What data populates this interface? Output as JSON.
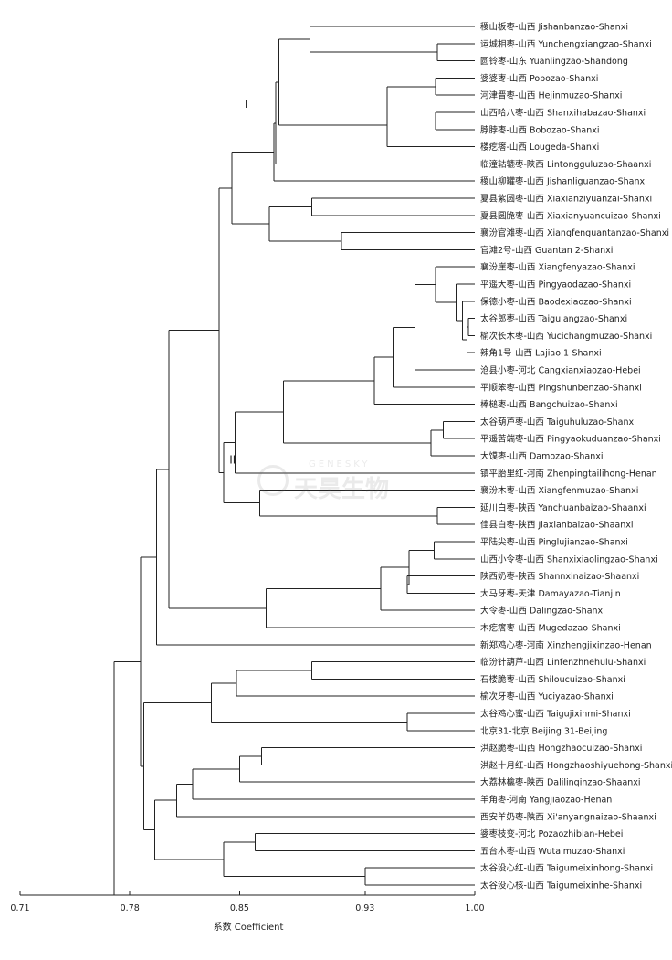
{
  "chart_data": {
    "type": "dendrogram",
    "xlabel": "系数 Coefficient",
    "xlim": [
      0.71,
      1.0
    ],
    "xticks": [
      "0.71",
      "0.78",
      "0.85",
      "0.93",
      "1.00"
    ],
    "cluster_labels": [
      "I",
      "II"
    ],
    "leaves": [
      "稷山板枣-山西 Jishanbanzao-Shanxi",
      "运城相枣-山西 Yunchengxiangzao-Shanxi",
      "圆铃枣-山东 Yuanlingzao-Shandong",
      "婆婆枣-山西 Popozao-Shanxi",
      "河津晋枣-山西 Hejinmuzao-Shanxi",
      "山西哈八枣-山西 Shanxihabazao-Shanxi",
      "脖脖枣-山西 Bobozao-Shanxi",
      "楼疙瘩-山西 Lougeda-Shanxi",
      "临潼轱辘枣-陕西 Lintongguluzao-Shaanxi",
      "稷山柳罐枣-山西 Jishanliguanzao-Shanxi",
      "夏县紫圆枣-山西 Xiaxianziyuanzai-Shanxi",
      "夏县圆脆枣-山西 Xiaxianyuancuizao-Shanxi",
      "襄汾官滩枣-山西 Xiangfenguantanzao-Shanxi",
      "官滩2号-山西 Guantan 2-Shanxi",
      "襄汾崖枣-山西 Xiangfenyazao-Shanxi",
      "平遥大枣-山西 Pingyaodazao-Shanxi",
      "保德小枣-山西 Baodexiaozao-Shanxi",
      "太谷郎枣-山西 Taigulangzao-Shanxi",
      "榆次长木枣-山西 Yucichangmuzao-Shanxi",
      "辣角1号-山西 Lajiao 1-Shanxi",
      "沧县小枣-河北 Cangxianxiaozao-Hebei",
      "平顺笨枣-山西 Pingshunbenzao-Shanxi",
      "棒槌枣-山西 Bangchuizao-Shanxi",
      "太谷葫芦枣-山西 Taiguhuluzao-Shanxi",
      "平遥苦端枣-山西 Pingyaokuduanzao-Shanxi",
      "大馍枣-山西 Damozao-Shanxi",
      "镇平胎里红-河南 Zhenpingtailihong-Henan",
      "襄汾木枣-山西 Xiangfenmuzao-Shanxi",
      "延川白枣-陕西 Yanchuanbaizao-Shaanxi",
      "佳县白枣-陕西 Jiaxianbaizao-Shaanxi",
      "平陆尖枣-山西 Pinglujianzao-Shanxi",
      "山西小令枣-山西 Shanxixiaolingzao-Shanxi",
      "陕西奶枣-陕西 Shannxinaizao-Shaanxi",
      "大马牙枣-天津 Damayazao-Tianjin",
      "大令枣-山西 Dalingzao-Shanxi",
      "木疙瘩枣-山西 Mugedazao-Shanxi",
      "新郑鸡心枣-河南 Xinzhengjixinzao-Henan",
      "临汾针葫芦-山西 Linfenzhnehulu-Shanxi",
      "石楼脆枣-山西 Shiloucuizao-Shanxi",
      "榆次牙枣-山西 Yuciyazao-Shanxi",
      "太谷鸡心蜜-山西 Taigujixinmi-Shanxi",
      "北京31-北京 Beijing 31-Beijing",
      "洪赵脆枣-山西 Hongzhaocuizao-Shanxi",
      "洪赵十月红-山西 Hongzhaoshiyuehong-Shanxi",
      "大荔林檎枣-陕西 Dalilinqinzao-Shaanxi",
      "羊角枣-河南 Yangjiaozao-Henan",
      "西安羊奶枣-陕西 Xi'anyangnaizao-Shaanxi",
      "婆枣枝变-河北 Pozaozhibian-Hebei",
      "五台木枣-山西 Wutaimuzao-Shanxi",
      "太谷没心红-山西 Taigumeixinhong-Shanxi",
      "太谷没心核-山西 Taigumeixinhe-Shanxi"
    ],
    "merges": [
      {
        "a": 1,
        "b": 2,
        "sim": 0.976
      },
      {
        "a": 3,
        "b": 4,
        "sim": 0.975
      },
      {
        "a": 5,
        "b": 6,
        "sim": 0.975
      },
      {
        "a": "n1",
        "b": "n2",
        "sim": 0.944
      },
      {
        "a": "n3",
        "b": 7,
        "sim": 0.944
      },
      {
        "a": 0,
        "b": "n0",
        "sim": 0.895
      },
      {
        "a": "n5",
        "b": "n4",
        "sim": 0.875
      },
      {
        "a": "n6",
        "b": 8,
        "sim": 0.873
      },
      {
        "a": "n7",
        "b": 9,
        "sim": 0.872
      },
      {
        "a": 10,
        "b": 11,
        "sim": 0.896
      },
      {
        "a": 12,
        "b": 13,
        "sim": 0.915
      },
      {
        "a": "n9",
        "b": "n10",
        "sim": 0.869
      },
      {
        "a": "n8",
        "b": "n11",
        "sim": 0.845
      },
      {
        "a": 17,
        "b": 18,
        "sim": 0.996
      },
      {
        "a": "n13",
        "b": 19,
        "sim": 0.995
      },
      {
        "a": 16,
        "b": "n14",
        "sim": 0.992
      },
      {
        "a": 15,
        "b": "n15",
        "sim": 0.988
      },
      {
        "a": 14,
        "b": "n16",
        "sim": 0.975
      },
      {
        "a": "n17",
        "b": 20,
        "sim": 0.962
      },
      {
        "a": "n18",
        "b": 21,
        "sim": 0.948
      },
      {
        "a": "n19",
        "b": 22,
        "sim": 0.936
      },
      {
        "a": 23,
        "b": 24,
        "sim": 0.98
      },
      {
        "a": "n21",
        "b": 25,
        "sim": 0.972
      },
      {
        "a": "n20",
        "b": "n22",
        "sim": 0.878
      },
      {
        "a": "n23",
        "b": 26,
        "sim": 0.847
      },
      {
        "a": 28,
        "b": 29,
        "sim": 0.976
      },
      {
        "a": 27,
        "b": "n25",
        "sim": 0.863
      },
      {
        "a": "n24",
        "b": "n26",
        "sim": 0.84
      },
      {
        "a": "n12",
        "b": "n27",
        "sim": 0.837
      },
      {
        "a": 30,
        "b": 31,
        "sim": 0.974
      },
      {
        "a": 32,
        "b": 33,
        "sim": 0.957
      },
      {
        "a": "n29",
        "b": "n30",
        "sim": 0.958
      },
      {
        "a": "n31",
        "b": 34,
        "sim": 0.94
      },
      {
        "a": "n32",
        "b": 35,
        "sim": 0.867
      },
      {
        "a": "n28",
        "b": "n33",
        "sim": 0.805
      },
      {
        "a": "n34",
        "b": 36,
        "sim": 0.797
      },
      {
        "a": 37,
        "b": 38,
        "sim": 0.896
      },
      {
        "a": "n36",
        "b": 39,
        "sim": 0.848
      },
      {
        "a": 40,
        "b": 41,
        "sim": 0.957
      },
      {
        "a": "n37",
        "b": "n38",
        "sim": 0.832
      },
      {
        "a": 42,
        "b": 43,
        "sim": 0.864
      },
      {
        "a": "n40",
        "b": 44,
        "sim": 0.85
      },
      {
        "a": "n41",
        "b": 45,
        "sim": 0.82
      },
      {
        "a": "n42",
        "b": 46,
        "sim": 0.81
      },
      {
        "a": 47,
        "b": 48,
        "sim": 0.86
      },
      {
        "a": 49,
        "b": 50,
        "sim": 0.93
      },
      {
        "a": "n44",
        "b": "n45",
        "sim": 0.84
      },
      {
        "a": "n43",
        "b": "n46",
        "sim": 0.796
      },
      {
        "a": "n39",
        "b": "n47",
        "sim": 0.789
      },
      {
        "a": "n35",
        "b": "n48",
        "sim": 0.787
      },
      {
        "a": "n49",
        "b": null,
        "sim": 0.77
      }
    ]
  },
  "watermark": {
    "en": "GENESKY",
    "cn": "天昊生物"
  }
}
